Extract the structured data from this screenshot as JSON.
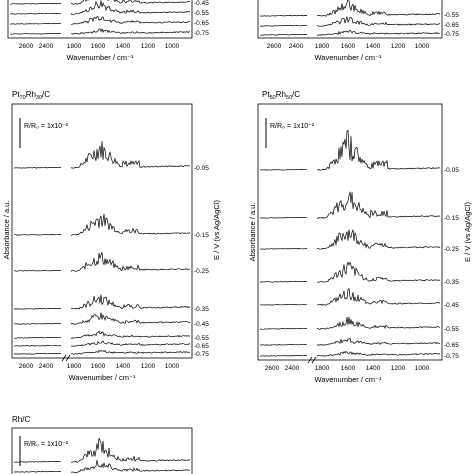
{
  "chart_data": [
    {
      "type": "line",
      "title": "",
      "xlabel": "Wavenumber / cm⁻¹",
      "xticks": [
        "2600",
        "2400",
        "1800",
        "1600",
        "1400",
        "1200",
        "1000"
      ],
      "potential_labels": [
        "-0.45",
        "-0.55",
        "-0.65",
        "-0.75"
      ],
      "panel_position": "top-left (cropped)"
    },
    {
      "type": "line",
      "title": "",
      "xlabel": "Wavenumber / cm⁻¹",
      "xticks": [
        "2600",
        "2400",
        "1800",
        "1600",
        "1400",
        "1200",
        "1000"
      ],
      "potential_labels": [
        "-0.55",
        "-0.65",
        "-0.75"
      ],
      "panel_position": "top-right (cropped)"
    },
    {
      "type": "line",
      "title": "Pt70Rh30/C",
      "title_main": "Pt",
      "title_sub1": "70",
      "title_mid": "Rh",
      "title_sub2": "30",
      "title_end": "/C",
      "scale_bar": "R/R₀ = 1x10⁻²",
      "ylabel": "Absorbance / a.u.",
      "y2label": "E / V (vs Ag/AgCl)",
      "xlabel": "Wavenumber / cm⁻¹",
      "xticks": [
        "2600",
        "2400",
        "1800",
        "1600",
        "1400",
        "1200",
        "1000"
      ],
      "potential_labels": [
        "-0.05",
        "-0.15",
        "-0.25",
        "-0.35",
        "-0.45",
        "-0.55",
        "-0.65",
        "-0.75"
      ]
    },
    {
      "type": "line",
      "title": "Pt50Rh50/C",
      "title_main": "Pt",
      "title_sub1": "50",
      "title_mid": "Rh",
      "title_sub2": "50",
      "title_end": "/C",
      "scale_bar": "R/R₀ = 1x10⁻²",
      "ylabel": "Absorbance / a.u.",
      "y2label": "E / V (vs Ag/AgCl)",
      "xlabel": "Wavenumber / cm⁻¹",
      "xticks": [
        "2600",
        "2400",
        "1800",
        "1600",
        "1400",
        "1200",
        "1000"
      ],
      "potential_labels": [
        "-0.05",
        "-0.15",
        "-0.25",
        "-0.35",
        "-0.45",
        "-0.55",
        "-0.65",
        "-0.75"
      ]
    },
    {
      "type": "line",
      "title": "Rh/C",
      "scale_bar": "R/R₀ = 1x10⁻²",
      "panel_position": "bottom-left (cropped)"
    }
  ]
}
